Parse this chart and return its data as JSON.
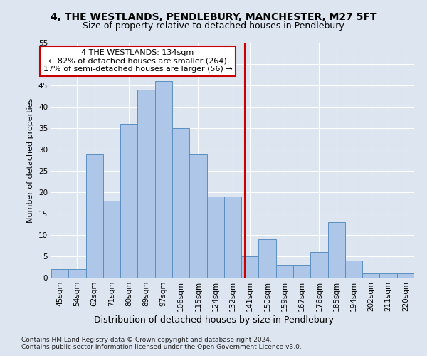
{
  "title": "4, THE WESTLANDS, PENDLEBURY, MANCHESTER, M27 5FT",
  "subtitle": "Size of property relative to detached houses in Pendlebury",
  "xlabel": "Distribution of detached houses by size in Pendlebury",
  "ylabel": "Number of detached properties",
  "categories": [
    "45sqm",
    "54sqm",
    "62sqm",
    "71sqm",
    "80sqm",
    "89sqm",
    "97sqm",
    "106sqm",
    "115sqm",
    "124sqm",
    "132sqm",
    "141sqm",
    "150sqm",
    "159sqm",
    "167sqm",
    "176sqm",
    "185sqm",
    "194sqm",
    "202sqm",
    "211sqm",
    "220sqm"
  ],
  "values": [
    2,
    2,
    29,
    18,
    36,
    44,
    46,
    35,
    29,
    19,
    19,
    5,
    9,
    3,
    3,
    6,
    13,
    4,
    1,
    1,
    1
  ],
  "bar_color": "#aec6e8",
  "bar_edge_color": "#5a8fc0",
  "vline_color": "#cc0000",
  "ylim": [
    0,
    55
  ],
  "yticks": [
    0,
    5,
    10,
    15,
    20,
    25,
    30,
    35,
    40,
    45,
    50,
    55
  ],
  "annotation_title": "4 THE WESTLANDS: 134sqm",
  "annotation_line1": "← 82% of detached houses are smaller (264)",
  "annotation_line2": "17% of semi-detached houses are larger (56) →",
  "annotation_box_color": "#ffffff",
  "annotation_box_edge": "#cc0000",
  "footnote1": "Contains HM Land Registry data © Crown copyright and database right 2024.",
  "footnote2": "Contains public sector information licensed under the Open Government Licence v3.0.",
  "background_color": "#dde5f0",
  "plot_background": "#dde5f0",
  "title_fontsize": 10,
  "subtitle_fontsize": 9,
  "xlabel_fontsize": 9,
  "ylabel_fontsize": 8,
  "tick_fontsize": 7.5,
  "footnote_fontsize": 6.5,
  "vline_index": 10.72
}
